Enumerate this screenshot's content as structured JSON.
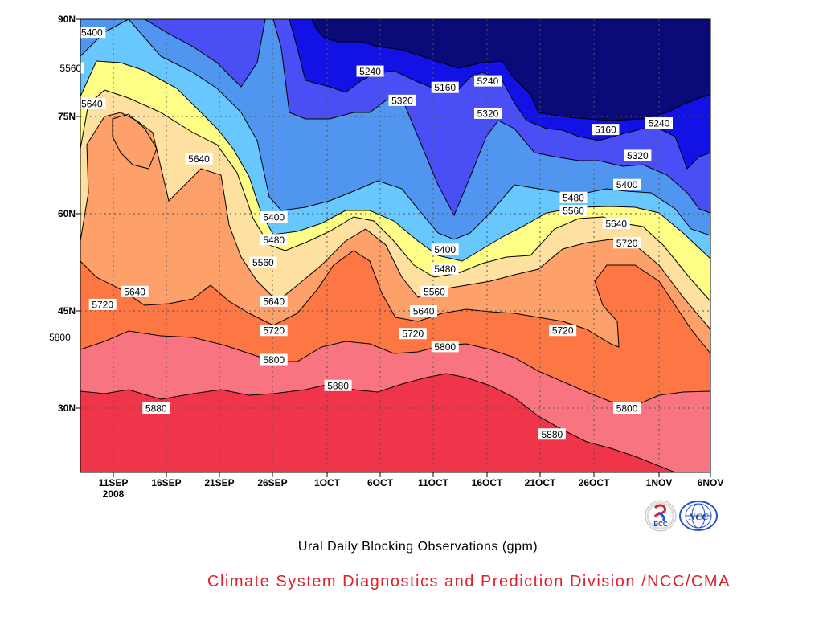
{
  "chart_data": {
    "type": "heatmap",
    "title": "Ural Daily Blocking Observations (gpm)",
    "x_ticks": [
      "11SEP",
      "16SEP",
      "21SEP",
      "26SEP",
      "1OCT",
      "6OCT",
      "11OCT",
      "16OCT",
      "21OCT",
      "26OCT",
      "1NOV",
      "6NOV"
    ],
    "x_year_label": "2008",
    "y_ticks": [
      "90N",
      "75N",
      "60N",
      "45N",
      "30N"
    ],
    "contour_levels": [
      5160,
      5240,
      5320,
      5400,
      5480,
      5560,
      5640,
      5720,
      5800,
      5880
    ],
    "contour_labels": [
      {
        "text": "5400",
        "x": "09SEP",
        "y": 88
      },
      {
        "text": "5560",
        "x": "07SEP",
        "y": 82.5
      },
      {
        "text": "5640",
        "x": "09SEP",
        "y": 77
      },
      {
        "text": "5640",
        "x": "19SEP",
        "y": 68.5
      },
      {
        "text": "5640",
        "x": "13SEP",
        "y": 48
      },
      {
        "text": "5720",
        "x": "10SEP",
        "y": 46
      },
      {
        "text": "5800",
        "x": "06SEP",
        "y": 41
      },
      {
        "text": "5880",
        "x": "15SEP",
        "y": 30
      },
      {
        "text": "5400",
        "x": "26SEP",
        "y": 59.5
      },
      {
        "text": "5480",
        "x": "26SEP",
        "y": 56
      },
      {
        "text": "5560",
        "x": "25SEP",
        "y": 52.5
      },
      {
        "text": "5640",
        "x": "26SEP",
        "y": 46.5
      },
      {
        "text": "5720",
        "x": "26SEP",
        "y": 42
      },
      {
        "text": "5800",
        "x": "26SEP",
        "y": 37.5
      },
      {
        "text": "5880",
        "x": "2OCT",
        "y": 33.5
      },
      {
        "text": "5240",
        "x": "5OCT",
        "y": 82
      },
      {
        "text": "5320",
        "x": "8OCT",
        "y": 77.5
      },
      {
        "text": "5160",
        "x": "12OCT",
        "y": 79.5
      },
      {
        "text": "5240",
        "x": "16OCT",
        "y": 80.5
      },
      {
        "text": "5320",
        "x": "16OCT",
        "y": 75.5
      },
      {
        "text": "5400",
        "x": "12OCT",
        "y": 54.5
      },
      {
        "text": "5480",
        "x": "12OCT",
        "y": 51.5
      },
      {
        "text": "5560",
        "x": "11OCT",
        "y": 48
      },
      {
        "text": "5640",
        "x": "10OCT",
        "y": 45
      },
      {
        "text": "5720",
        "x": "9OCT",
        "y": 41.5
      },
      {
        "text": "5800",
        "x": "12OCT",
        "y": 39.5
      },
      {
        "text": "5480",
        "x": "24OCT",
        "y": 62.5
      },
      {
        "text": "5560",
        "x": "24OCT",
        "y": 60.5
      },
      {
        "text": "5720",
        "x": "23OCT",
        "y": 42
      },
      {
        "text": "5880",
        "x": "22OCT",
        "y": 26
      },
      {
        "text": "5160",
        "x": "27OCT",
        "y": 73
      },
      {
        "text": "5240",
        "x": "1NOV",
        "y": 74
      },
      {
        "text": "5320",
        "x": "30OCT",
        "y": 69
      },
      {
        "text": "5400",
        "x": "29OCT",
        "y": 64.5
      },
      {
        "text": "5640",
        "x": "28OCT",
        "y": 58.5
      },
      {
        "text": "5720",
        "x": "29OCT",
        "y": 55.5
      },
      {
        "text": "5800",
        "x": "29OCT",
        "y": 30
      }
    ],
    "colors": {
      "above_5880": "#f0344a",
      "5800_5880": "#f77480",
      "5720_5800": "#fc7744",
      "5640_5720": "#fea06a",
      "5560_5640": "#fee0a0",
      "5480_5560": "#fefe86",
      "5400_5480": "#68c8fe",
      "5320_5400": "#5096f0",
      "5240_5320": "#4a4ef5",
      "5160_5240": "#1212e6",
      "below_5160": "#0a0a78"
    },
    "grid": "dotted"
  },
  "credit": "Climate System Diagnostics and Prediction Division /NCC/CMA",
  "logos": [
    {
      "icon": "bcc-logo-icon",
      "text": "BCC"
    },
    {
      "icon": "ncc-logo-icon",
      "text": "NCC"
    }
  ]
}
